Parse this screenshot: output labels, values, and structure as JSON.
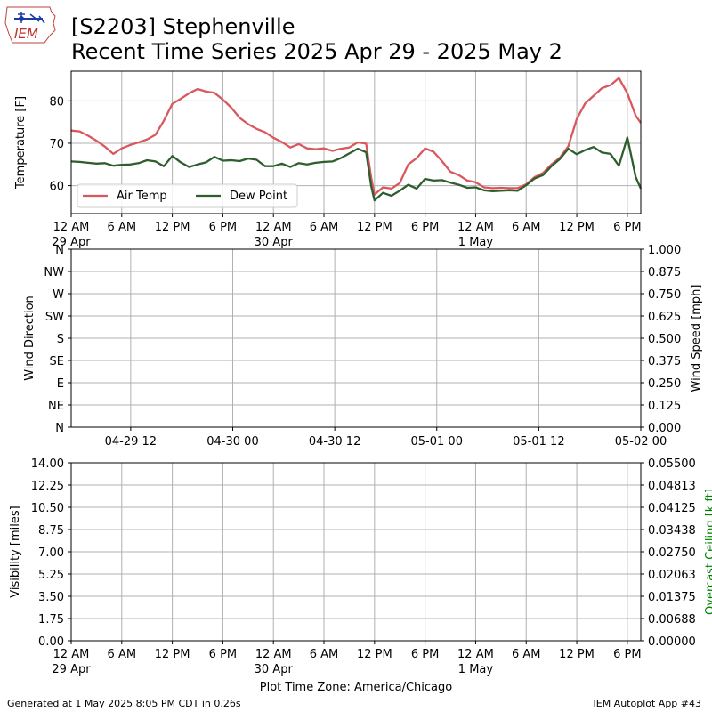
{
  "header": {
    "logo_text": "IEM",
    "title_line1": "[S2203] Stephenville",
    "title_line2": "Recent Time Series 2025 Apr 29 - 2025 May 2"
  },
  "footer": {
    "left": "Generated at 1 May 2025 8:05 PM CDT in 0.26s",
    "right": "IEM Autoplot App #43"
  },
  "timezone_label": "Plot Time Zone: America/Chicago",
  "colors": {
    "air_temp": "#d9585d",
    "dew_point": "#2e5e2e",
    "grid": "#b0b0b0",
    "ceiling_label": "#008000"
  },
  "chart_data": [
    {
      "type": "line",
      "ylabel": "Temperature [F]",
      "ylim": [
        53.4,
        87
      ],
      "yticks": [
        60,
        70,
        80
      ],
      "x_unit": "hours since 2025-04-29 00:00 America/Chicago",
      "xlim": [
        0,
        67.6
      ],
      "xticks": [
        {
          "h": 0,
          "label": "12 AM",
          "sub": "29 Apr"
        },
        {
          "h": 6,
          "label": "6 AM",
          "sub": ""
        },
        {
          "h": 12,
          "label": "12 PM",
          "sub": ""
        },
        {
          "h": 18,
          "label": "6 PM",
          "sub": ""
        },
        {
          "h": 24,
          "label": "12 AM",
          "sub": "30 Apr"
        },
        {
          "h": 30,
          "label": "6 AM",
          "sub": ""
        },
        {
          "h": 36,
          "label": "12 PM",
          "sub": ""
        },
        {
          "h": 42,
          "label": "6 PM",
          "sub": ""
        },
        {
          "h": 48,
          "label": "12 AM",
          "sub": "1 May"
        },
        {
          "h": 54,
          "label": "6 AM",
          "sub": ""
        },
        {
          "h": 60,
          "label": "12 PM",
          "sub": ""
        },
        {
          "h": 66,
          "label": "6 PM",
          "sub": ""
        }
      ],
      "legend": "lower-left",
      "grid": true,
      "series": [
        {
          "name": "Air Temp",
          "color": "#d9585d",
          "x": [
            0,
            1,
            2,
            3,
            4,
            5,
            6,
            7,
            8,
            9,
            10,
            11,
            12,
            13,
            14,
            15,
            16,
            17,
            18,
            19,
            20,
            21,
            22,
            23,
            24,
            25,
            26,
            27,
            28,
            29,
            30,
            31,
            32,
            33,
            34,
            35,
            35.6,
            36,
            37,
            38,
            39,
            40,
            41,
            42,
            43,
            44,
            45,
            46,
            47,
            48,
            49,
            50,
            51,
            52,
            53,
            54,
            55,
            56,
            57,
            58,
            59,
            60,
            61,
            62,
            63,
            64,
            65,
            66,
            67,
            67.6
          ],
          "values": [
            73,
            72.8,
            71.8,
            70.6,
            69.2,
            67.5,
            68.8,
            69.6,
            70.2,
            70.9,
            72,
            75.3,
            79.3,
            80.5,
            81.8,
            82.8,
            82.2,
            81.9,
            80.3,
            78.4,
            76,
            74.5,
            73.4,
            72.6,
            71.3,
            70.3,
            69,
            69.8,
            68.8,
            68.6,
            68.8,
            68.2,
            68.7,
            69,
            70.2,
            69.9,
            62,
            57.9,
            59.6,
            59.3,
            60.6,
            65,
            66.5,
            68.8,
            68,
            65.8,
            63.3,
            62.5,
            61.2,
            60.8,
            59.6,
            59.4,
            59.5,
            59.4,
            59.4,
            60.3,
            62,
            63,
            65,
            66.6,
            69.3,
            75.7,
            79.4,
            81.2,
            83,
            83.7,
            85.4,
            81.8,
            76.5,
            74.8
          ]
        },
        {
          "name": "Dew Point",
          "color": "#2e5e2e",
          "x": [
            0,
            1,
            2,
            3,
            4,
            5,
            6,
            7,
            8,
            9,
            10,
            11,
            12,
            13,
            14,
            15,
            16,
            17,
            18,
            19,
            20,
            21,
            22,
            23,
            24,
            25,
            26,
            27,
            28,
            29,
            30,
            31,
            32,
            33,
            34,
            35,
            35.6,
            36,
            37,
            38,
            39,
            40,
            41,
            42,
            43,
            44,
            45,
            46,
            47,
            48,
            49,
            50,
            51,
            52,
            53,
            54,
            55,
            56,
            57,
            58,
            59,
            60,
            61,
            62,
            63,
            64,
            65,
            66,
            67,
            67.6
          ],
          "values": [
            65.7,
            65.6,
            65.4,
            65.2,
            65.3,
            64.7,
            64.9,
            65,
            65.3,
            66,
            65.7,
            64.6,
            67,
            65.5,
            64.4,
            65,
            65.5,
            66.8,
            65.9,
            66,
            65.8,
            66.4,
            66.1,
            64.6,
            64.6,
            65.2,
            64.4,
            65.3,
            65,
            65.4,
            65.6,
            65.7,
            66.5,
            67.6,
            68.7,
            67.9,
            60,
            56.5,
            58.3,
            57.6,
            58.8,
            60.2,
            59.3,
            61.6,
            61.2,
            61.3,
            60.7,
            60.2,
            59.5,
            59.6,
            58.9,
            58.7,
            58.8,
            58.9,
            58.8,
            60.1,
            61.7,
            62.5,
            64.6,
            66.3,
            68.7,
            67.4,
            68.4,
            69.1,
            67.8,
            67.5,
            64.7,
            71.4,
            62,
            59.3
          ]
        }
      ]
    },
    {
      "type": "scatter",
      "ylabel": "Wind Direction",
      "y2label": "Wind Speed [mph]",
      "ylim": [
        0,
        360
      ],
      "yticks": [
        "N",
        "NE",
        "E",
        "SE",
        "S",
        "SW",
        "W",
        "NW",
        "N"
      ],
      "y2lim": [
        0,
        1
      ],
      "y2ticks": [
        "0.000",
        "0.125",
        "0.250",
        "0.375",
        "0.500",
        "0.625",
        "0.750",
        "0.875",
        "1.000"
      ],
      "xticks": [
        "04-29 12",
        "04-30 00",
        "04-30 12",
        "05-01 00",
        "05-01 12",
        "05-02 00"
      ],
      "grid": true,
      "series": []
    },
    {
      "type": "line",
      "ylabel": "Visibility [miles]",
      "y2label": "Overcast Ceiling [k ft]",
      "ylim": [
        0,
        14
      ],
      "yticks": [
        "0.00",
        "1.75",
        "3.50",
        "5.25",
        "7.00",
        "8.75",
        "10.50",
        "12.25",
        "14.00"
      ],
      "y2lim": [
        0,
        0.055
      ],
      "y2ticks": [
        "0.00000",
        "0.00688",
        "0.01375",
        "0.02063",
        "0.02750",
        "0.03438",
        "0.04125",
        "0.04813",
        "0.05500"
      ],
      "xlabel": "Plot Time Zone: America/Chicago",
      "grid": true,
      "series": []
    }
  ]
}
